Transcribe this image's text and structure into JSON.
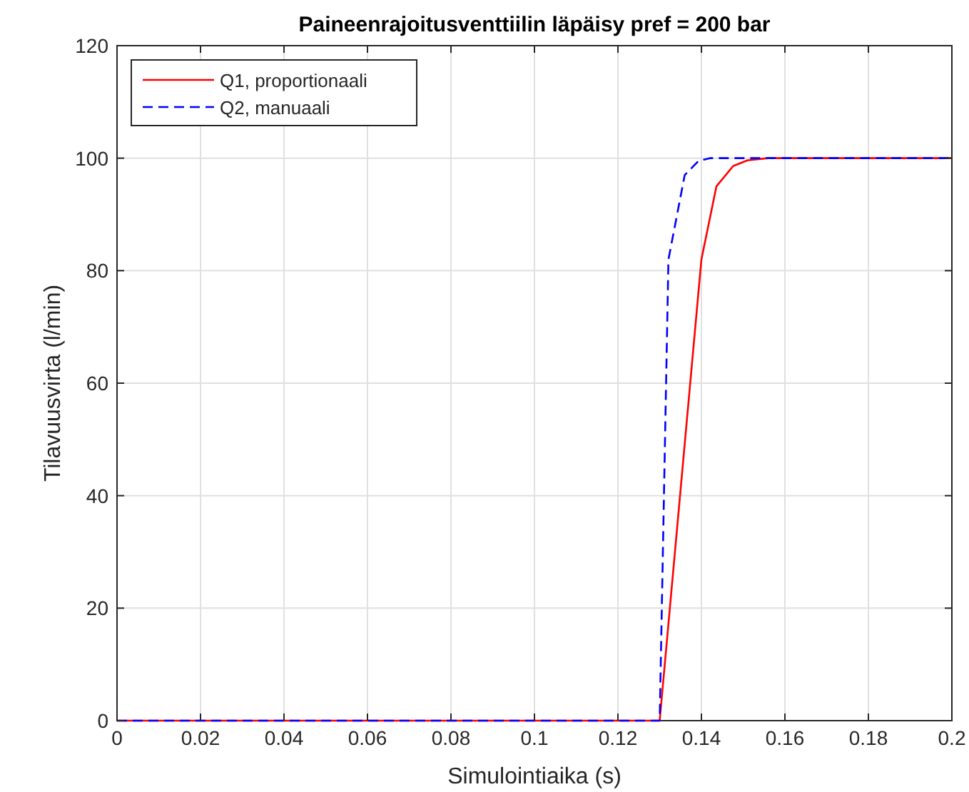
{
  "chart_data": {
    "type": "line",
    "title": "Paineenrajoitusventtiilin läpäisy pref = 200 bar",
    "xlabel": "Simulointiaika (s)",
    "ylabel": "Tilavuusvirta (l/min)",
    "xlim": [
      0,
      0.2
    ],
    "xticks": [
      0,
      0.02,
      0.04,
      0.06,
      0.08,
      0.1,
      0.12,
      0.14,
      0.16,
      0.18,
      0.2
    ],
    "ylim": [
      0,
      120
    ],
    "yticks": [
      0,
      20,
      40,
      60,
      80,
      100,
      120
    ],
    "grid": true,
    "legend": "top left",
    "series": [
      {
        "name": "Q1, proportionaali",
        "color": "#ff0000",
        "line_style": "solid",
        "x": [
          0,
          0.13,
          0.14,
          0.1436,
          0.1476,
          0.151,
          0.156,
          0.2
        ],
        "values": [
          0,
          0,
          82,
          95,
          98.6,
          99.6,
          100,
          100
        ]
      },
      {
        "name": "Q2, manuaali",
        "color": "#0000ff",
        "line_style": "dashed",
        "x": [
          0,
          0.13,
          0.1321,
          0.136,
          0.1393,
          0.142,
          0.2
        ],
        "values": [
          0,
          0,
          82,
          97,
          99.5,
          100,
          100
        ]
      }
    ]
  }
}
